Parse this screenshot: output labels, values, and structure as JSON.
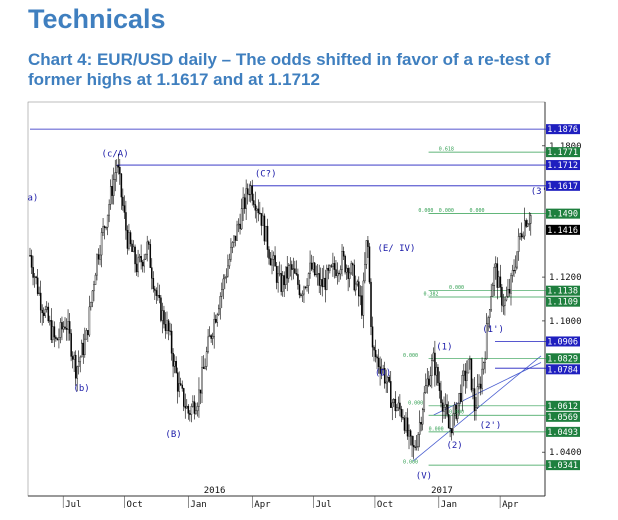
{
  "header": {
    "title": "Technicals",
    "subtitle": "Chart 4: EUR/USD daily – The odds shifted in favor of a re-test of former highs at 1.1617 and at 1.1712"
  },
  "chart_data": {
    "type": "candlestick",
    "instrument": "EUR/USD daily",
    "x_months": [
      "Jul",
      "Oct",
      "Jan",
      "Apr",
      "Jul",
      "Oct",
      "Jan",
      "Apr"
    ],
    "year_labels": [
      "2016",
      "2017"
    ],
    "y_ticks": [
      "1.1800",
      "1.1200",
      "1.1000",
      "1.0400"
    ],
    "ylim": [
      1.02,
      1.2
    ],
    "price_path": [
      [
        0,
        1.13
      ],
      [
        2,
        1.11
      ],
      [
        5,
        1.09
      ],
      [
        7,
        1.1
      ],
      [
        9,
        1.078
      ],
      [
        11,
        1.092
      ],
      [
        13,
        1.128
      ],
      [
        15,
        1.148
      ],
      [
        17,
        1.172
      ],
      [
        19,
        1.138
      ],
      [
        21,
        1.124
      ],
      [
        23,
        1.134
      ],
      [
        25,
        1.108
      ],
      [
        27,
        1.096
      ],
      [
        29,
        1.07
      ],
      [
        31,
        1.058
      ],
      [
        33,
        1.066
      ],
      [
        35,
        1.09
      ],
      [
        37,
        1.11
      ],
      [
        39,
        1.128
      ],
      [
        41,
        1.146
      ],
      [
        43,
        1.162
      ],
      [
        45,
        1.15
      ],
      [
        47,
        1.13
      ],
      [
        49,
        1.116
      ],
      [
        51,
        1.124
      ],
      [
        53,
        1.114
      ],
      [
        55,
        1.124
      ],
      [
        57,
        1.116
      ],
      [
        59,
        1.122
      ],
      [
        61,
        1.128
      ],
      [
        63,
        1.122
      ],
      [
        65,
        1.106
      ],
      [
        66,
        1.14
      ],
      [
        67,
        1.086
      ],
      [
        69,
        1.078
      ],
      [
        71,
        1.062
      ],
      [
        73,
        1.058
      ],
      [
        74,
        1.046
      ],
      [
        75,
        1.04
      ],
      [
        76,
        1.05
      ],
      [
        77,
        1.064
      ],
      [
        78,
        1.075
      ],
      [
        79,
        1.082
      ],
      [
        80,
        1.07
      ],
      [
        81,
        1.061
      ],
      [
        82,
        1.05
      ],
      [
        83,
        1.056
      ],
      [
        84,
        1.065
      ],
      [
        85,
        1.074
      ],
      [
        86,
        1.08
      ],
      [
        87,
        1.06
      ],
      [
        88,
        1.07
      ],
      [
        89,
        1.086
      ],
      [
        90,
        1.11
      ],
      [
        91,
        1.125
      ],
      [
        92,
        1.112
      ],
      [
        93,
        1.108
      ],
      [
        94,
        1.115
      ],
      [
        95,
        1.128
      ],
      [
        96,
        1.14
      ],
      [
        97,
        1.147
      ],
      [
        98,
        1.148
      ]
    ],
    "price_levels": [
      {
        "label": "1.1876",
        "style": "line-blue"
      },
      {
        "label": "1.1771",
        "style": "box-green"
      },
      {
        "label": "1.1712",
        "style": "line-blue"
      },
      {
        "label": "1.1617",
        "style": "line-blue"
      },
      {
        "label": "1.1490",
        "style": "box-green"
      },
      {
        "label": "1.1416",
        "style": "current"
      },
      {
        "label": "1.1138",
        "style": "box-green"
      },
      {
        "label": "1.1109",
        "style": "box-green"
      },
      {
        "label": "1.0906",
        "style": "line-blue"
      },
      {
        "label": "1.0829",
        "style": "box-green"
      },
      {
        "label": "1.0784",
        "style": "line-blue"
      },
      {
        "label": "1.0612",
        "style": "box-green"
      },
      {
        "label": "1.0569",
        "style": "box-green"
      },
      {
        "label": "1.0493",
        "style": "box-green"
      },
      {
        "label": "1.0341",
        "style": "box-green"
      }
    ],
    "wave_labels": [
      "a)",
      "(c/A)",
      "(b)",
      "(B)",
      "(C?)",
      "(E/ IV)",
      "(D)",
      "(V)",
      "(1)",
      "(1')",
      "(2)",
      "(2')",
      "(3'"
    ],
    "fib_labels": [
      "0.618",
      "0.000",
      "0.000",
      "0.000",
      "0.000",
      "0.382",
      "0.000",
      "0.000",
      "0.000",
      "0.000",
      "0.000"
    ],
    "colors": {
      "candle": "#000000",
      "level_blue": "#1f1fbf",
      "level_green": "#1e7f3e",
      "fib_green": "#2e9d4f",
      "current": "#000000",
      "wave_label": "#1a1aa8",
      "title": "#3f7fbf"
    }
  }
}
